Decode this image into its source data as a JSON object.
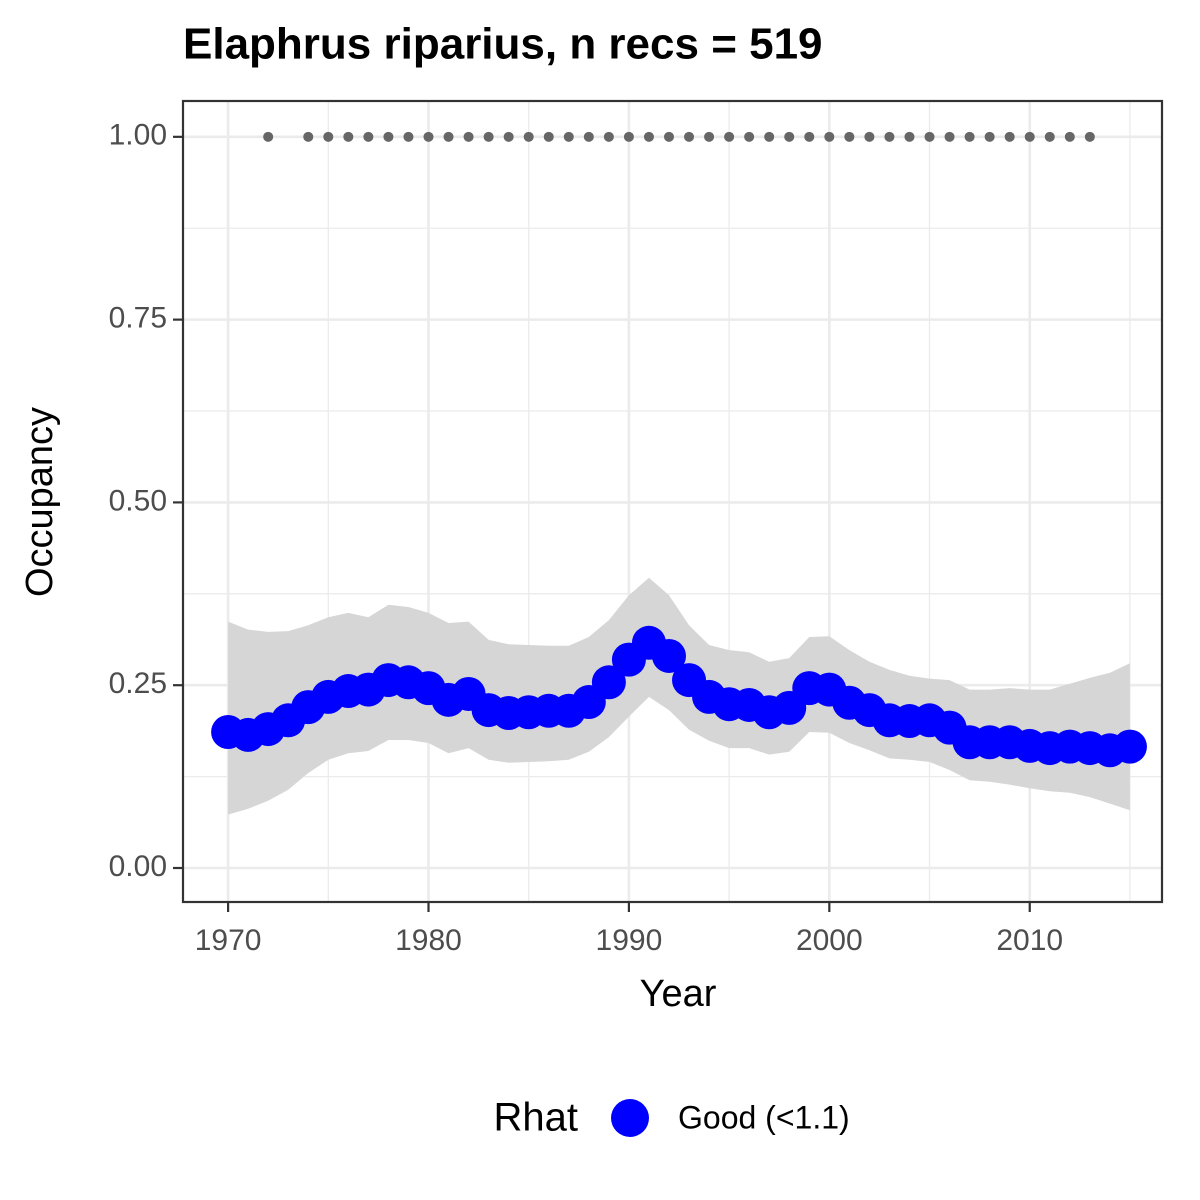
{
  "chart_data": {
    "type": "line",
    "title": "Elaphrus riparius, n recs = 519",
    "xlabel": "Year",
    "ylabel": "Occupancy",
    "legend_title": "Rhat",
    "legend_position": "bottom",
    "grid": true,
    "xlim": [
      1967.75,
      2016.6
    ],
    "ylim": [
      -0.0465,
      1.049
    ],
    "xticks": [
      1970,
      1980,
      1990,
      2000,
      2010
    ],
    "minor_xticks": [
      1975,
      1985,
      1995,
      2005,
      2015
    ],
    "yticks": [
      {
        "value": 0,
        "label": "0.00"
      },
      {
        "value": 0.25,
        "label": "0.25"
      },
      {
        "value": 0.5,
        "label": "0.50"
      },
      {
        "value": 0.75,
        "label": "0.75"
      },
      {
        "value": 1,
        "label": "1.00"
      }
    ],
    "minor_yticks": [
      0.125,
      0.375,
      0.625,
      0.875
    ],
    "x": [
      1970,
      1971,
      1972,
      1973,
      1974,
      1975,
      1976,
      1977,
      1978,
      1979,
      1980,
      1981,
      1982,
      1983,
      1984,
      1985,
      1986,
      1987,
      1988,
      1989,
      1990,
      1991,
      1992,
      1993,
      1994,
      1995,
      1996,
      1997,
      1998,
      1999,
      2000,
      2001,
      2002,
      2003,
      2004,
      2005,
      2006,
      2007,
      2008,
      2009,
      2010,
      2011,
      2012,
      2013,
      2014,
      2015
    ],
    "series": [
      {
        "name": "Good (<1.1)",
        "color": "#0000ff",
        "values": [
          0.186,
          0.182,
          0.19,
          0.202,
          0.22,
          0.234,
          0.242,
          0.244,
          0.257,
          0.254,
          0.246,
          0.23,
          0.238,
          0.216,
          0.212,
          0.213,
          0.215,
          0.215,
          0.227,
          0.254,
          0.285,
          0.308,
          0.29,
          0.257,
          0.234,
          0.224,
          0.223,
          0.213,
          0.219,
          0.246,
          0.244,
          0.226,
          0.216,
          0.202,
          0.201,
          0.202,
          0.192,
          0.172,
          0.172,
          0.172,
          0.167,
          0.164,
          0.166,
          0.164,
          0.161,
          0.166
        ]
      }
    ],
    "ribbon": {
      "color": "#d6d6d6",
      "upper": [
        0.337,
        0.326,
        0.323,
        0.324,
        0.332,
        0.343,
        0.349,
        0.343,
        0.36,
        0.357,
        0.349,
        0.335,
        0.337,
        0.312,
        0.306,
        0.305,
        0.304,
        0.304,
        0.316,
        0.339,
        0.373,
        0.397,
        0.373,
        0.332,
        0.305,
        0.298,
        0.295,
        0.282,
        0.287,
        0.316,
        0.317,
        0.298,
        0.282,
        0.271,
        0.263,
        0.259,
        0.257,
        0.244,
        0.244,
        0.246,
        0.244,
        0.244,
        0.252,
        0.26,
        0.267,
        0.28
      ],
      "lower": [
        0.073,
        0.081,
        0.092,
        0.107,
        0.13,
        0.148,
        0.157,
        0.16,
        0.175,
        0.175,
        0.171,
        0.157,
        0.164,
        0.148,
        0.144,
        0.145,
        0.146,
        0.148,
        0.159,
        0.179,
        0.207,
        0.234,
        0.216,
        0.189,
        0.174,
        0.164,
        0.164,
        0.155,
        0.159,
        0.186,
        0.185,
        0.171,
        0.161,
        0.15,
        0.148,
        0.145,
        0.134,
        0.12,
        0.118,
        0.114,
        0.109,
        0.105,
        0.103,
        0.097,
        0.088,
        0.079
      ]
    },
    "records": {
      "color": "#666666",
      "x": [
        1972,
        1974,
        1975,
        1976,
        1977,
        1978,
        1979,
        1980,
        1981,
        1982,
        1983,
        1984,
        1985,
        1986,
        1987,
        1988,
        1989,
        1990,
        1991,
        1992,
        1993,
        1994,
        1995,
        1996,
        1997,
        1998,
        1999,
        2000,
        2001,
        2002,
        2003,
        2004,
        2005,
        2006,
        2007,
        2008,
        2009,
        2010,
        2011,
        2012,
        2013
      ],
      "values": [
        1,
        1,
        1,
        1,
        1,
        1,
        1,
        1,
        1,
        1,
        1,
        1,
        1,
        1,
        1,
        1,
        1,
        1,
        1,
        1,
        1,
        1,
        1,
        1,
        1,
        1,
        1,
        1,
        1,
        1,
        1,
        1,
        1,
        1,
        1,
        1,
        1,
        1,
        1,
        1,
        1
      ]
    }
  }
}
